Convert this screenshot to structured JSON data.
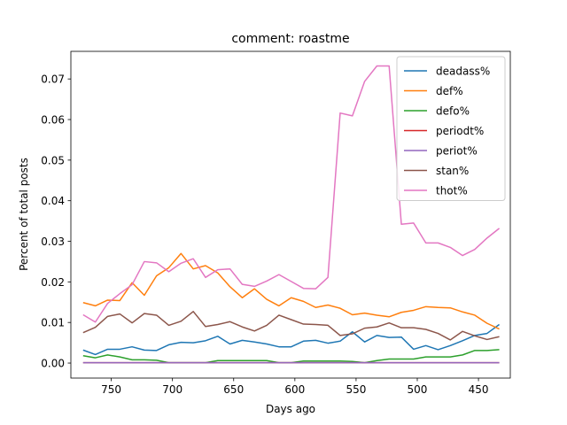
{
  "chart_data": {
    "type": "line",
    "title": "comment: roastme",
    "xlabel": "Days ago",
    "ylabel": "Percent of total posts",
    "xlim": [
      783,
      424
    ],
    "ylim": [
      -0.0037,
      0.0768
    ],
    "xticks": [
      750,
      700,
      650,
      600,
      550,
      500,
      450
    ],
    "xtick_labels": [
      "750",
      "700",
      "650",
      "600",
      "550",
      "500",
      "450"
    ],
    "yticks": [
      0.0,
      0.01,
      0.02,
      0.03,
      0.04,
      0.05,
      0.06,
      0.07
    ],
    "ytick_labels": [
      "0.00",
      "0.01",
      "0.02",
      "0.03",
      "0.04",
      "0.05",
      "0.06",
      "0.07"
    ],
    "grid": false,
    "legend_position": "upper right",
    "x": [
      773,
      763,
      753,
      743,
      733,
      723,
      713,
      703,
      693,
      683,
      673,
      663,
      653,
      643,
      633,
      623,
      613,
      603,
      593,
      583,
      573,
      563,
      553,
      543,
      533,
      523,
      513,
      503,
      493,
      483,
      473,
      463,
      453,
      443,
      433
    ],
    "series": [
      {
        "name": "deadass%",
        "color": "#1f77b4",
        "values": [
          0.0032,
          0.0021,
          0.0034,
          0.0034,
          0.004,
          0.0032,
          0.0031,
          0.0045,
          0.0051,
          0.005,
          0.0055,
          0.0066,
          0.0047,
          0.0056,
          0.0052,
          0.0047,
          0.004,
          0.004,
          0.0054,
          0.0056,
          0.0049,
          0.0054,
          0.0077,
          0.0052,
          0.0068,
          0.0063,
          0.0064,
          0.0034,
          0.0043,
          0.0033,
          0.0043,
          0.0055,
          0.0068,
          0.0073,
          0.0095
        ]
      },
      {
        "name": "def%",
        "color": "#ff7f0e",
        "values": [
          0.0149,
          0.0141,
          0.0155,
          0.0154,
          0.0198,
          0.0167,
          0.0215,
          0.0235,
          0.027,
          0.0232,
          0.024,
          0.0222,
          0.0188,
          0.0161,
          0.0183,
          0.0157,
          0.0141,
          0.0161,
          0.0152,
          0.0137,
          0.0143,
          0.0135,
          0.0119,
          0.0123,
          0.0118,
          0.0114,
          0.0125,
          0.013,
          0.0139,
          0.0137,
          0.0136,
          0.0126,
          0.0118,
          0.0098,
          0.0084
        ]
      },
      {
        "name": "defo%",
        "color": "#2ca02c",
        "values": [
          0.0018,
          0.0013,
          0.002,
          0.0015,
          0.0008,
          0.0008,
          0.0007,
          0.0001,
          0.0001,
          0.0001,
          0.0001,
          0.0006,
          0.0006,
          0.0006,
          0.0006,
          0.0006,
          0.0001,
          0.0001,
          0.0005,
          0.0005,
          0.0005,
          0.0005,
          0.0004,
          0.0001,
          0.0006,
          0.001,
          0.001,
          0.001,
          0.0015,
          0.0015,
          0.0015,
          0.002,
          0.0031,
          0.0031,
          0.0033
        ]
      },
      {
        "name": "periodt%",
        "color": "#d62728",
        "values": [
          0.0001,
          0.0001,
          0.0001,
          0.0001,
          0.0001,
          0.0001,
          0.0001,
          0.0001,
          0.0001,
          0.0001,
          0.0001,
          0.0001,
          0.0001,
          0.0001,
          0.0001,
          0.0001,
          0.0001,
          0.0001,
          0.0001,
          0.0001,
          0.0001,
          0.0001,
          0.0001,
          0.0001,
          0.0001,
          0.0001,
          0.0001,
          0.0001,
          0.0001,
          0.0001,
          0.0001,
          0.0001,
          0.0001,
          0.0001,
          0.0001
        ]
      },
      {
        "name": "periot%",
        "color": "#9467bd",
        "values": [
          0.0001,
          0.0001,
          0.0001,
          0.0001,
          0.0001,
          0.0001,
          0.0001,
          0.0001,
          0.0001,
          0.0001,
          0.0001,
          0.0001,
          0.0001,
          0.0001,
          0.0001,
          0.0001,
          0.0001,
          0.0001,
          0.0001,
          0.0001,
          0.0001,
          0.0001,
          0.0001,
          0.0001,
          0.0001,
          0.0001,
          0.0001,
          0.0001,
          0.0001,
          0.0001,
          0.0001,
          0.0001,
          0.0001,
          0.0001,
          0.0001
        ]
      },
      {
        "name": "stan%",
        "color": "#8c564b",
        "values": [
          0.0075,
          0.0088,
          0.0115,
          0.0121,
          0.0099,
          0.0122,
          0.0118,
          0.0093,
          0.0103,
          0.0127,
          0.009,
          0.0095,
          0.0102,
          0.0089,
          0.0079,
          0.0093,
          0.0118,
          0.0107,
          0.0096,
          0.0095,
          0.0093,
          0.0068,
          0.0072,
          0.0086,
          0.0089,
          0.0099,
          0.0087,
          0.0087,
          0.0083,
          0.0073,
          0.0057,
          0.0078,
          0.0067,
          0.0058,
          0.0065
        ]
      },
      {
        "name": "thot%",
        "color": "#e377c2",
        "values": [
          0.0119,
          0.0101,
          0.0147,
          0.0171,
          0.0193,
          0.025,
          0.0247,
          0.0225,
          0.0246,
          0.0257,
          0.0211,
          0.023,
          0.0232,
          0.0194,
          0.0189,
          0.0202,
          0.0218,
          0.0201,
          0.0184,
          0.0183,
          0.0211,
          0.0616,
          0.0609,
          0.0694,
          0.0732,
          0.0732,
          0.0342,
          0.0345,
          0.0296,
          0.0296,
          0.0285,
          0.0265,
          0.028,
          0.0308,
          0.0332
        ]
      }
    ]
  }
}
